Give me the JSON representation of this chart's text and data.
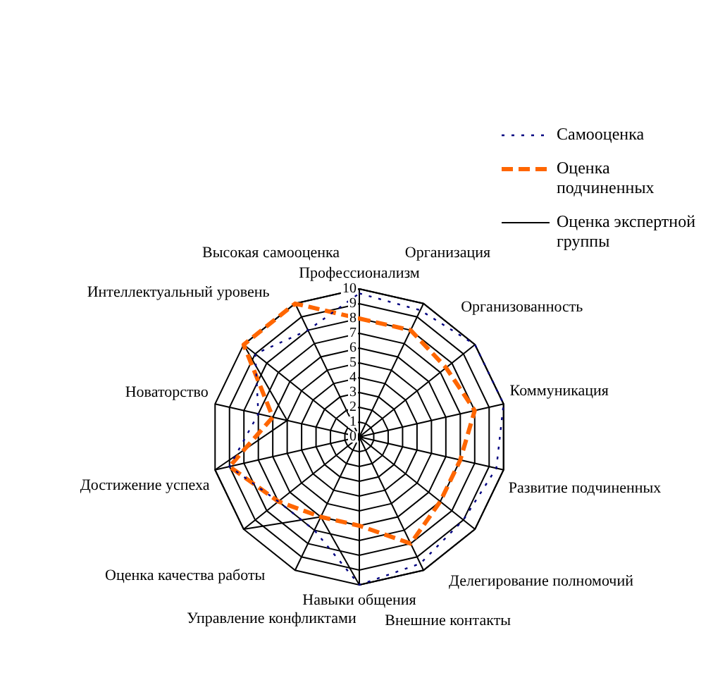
{
  "chart_data": {
    "type": "radar",
    "categories": [
      "Профессионализм",
      "Организация",
      "Организованность",
      "Коммуникация",
      "Развитие подчиненных",
      "Делегирование полномочий",
      "Внешние контакты",
      "Навыки общения",
      "Управление конфликтами",
      "Оценка качества работы",
      "Достижение успеха",
      "Новаторство",
      "Интеллектуальный уровень",
      "Высокая самооценка"
    ],
    "series": [
      {
        "name": "Самооценка",
        "color": "#000080",
        "line_style": "dotted",
        "values": [
          9.7,
          9.5,
          10,
          10,
          9.5,
          9,
          9.5,
          10,
          7,
          7,
          9,
          7,
          9,
          8
        ]
      },
      {
        "name": "Оценка подчиненных",
        "color": "#ff6600",
        "line_style": "dashed",
        "values": [
          8,
          8,
          7.5,
          8,
          7,
          7,
          8,
          6,
          6,
          7,
          9,
          6,
          10,
          10
        ]
      },
      {
        "name": "Оценка экспертной группы",
        "color": "#000000",
        "line_style": "solid",
        "values": [
          10,
          10,
          10,
          10,
          10,
          10,
          10,
          10,
          6,
          10,
          10,
          5,
          10,
          10
        ]
      }
    ],
    "ylim": [
      0,
      10
    ],
    "yticks": [
      0,
      1,
      2,
      3,
      4,
      5,
      6,
      7,
      8,
      9,
      10
    ],
    "grid": true,
    "legend": "right",
    "marker": "none"
  }
}
